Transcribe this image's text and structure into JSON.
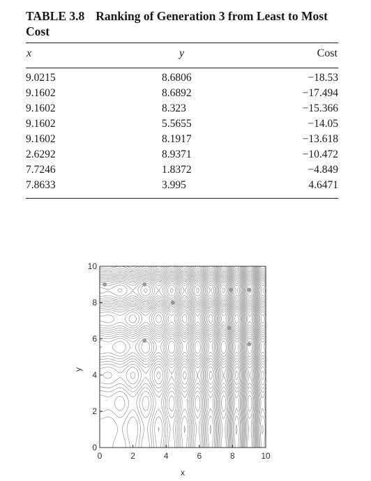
{
  "table": {
    "number": "TABLE 3.8",
    "title": "Ranking of Generation 3 from Least to Most Cost",
    "columns": [
      "x",
      "y",
      "Cost"
    ],
    "rows": [
      [
        "9.0215",
        "8.6806",
        "−18.53"
      ],
      [
        "9.1602",
        "8.6892",
        "−17.494"
      ],
      [
        "9.1602",
        "8.323",
        "−15.366"
      ],
      [
        "9.1602",
        "5.5655",
        "−14.05"
      ],
      [
        "9.1602",
        "8.1917",
        "−13.618"
      ],
      [
        "2.6292",
        "8.9371",
        "−10.472"
      ],
      [
        "7.7246",
        "1.8372",
        "−4.849"
      ],
      [
        "7.8633",
        "3.995",
        "4.6471"
      ]
    ]
  },
  "chart_data": {
    "type": "scatter",
    "title": "",
    "xlabel": "x",
    "ylabel": "y",
    "xlim": [
      0,
      10
    ],
    "ylim": [
      0,
      10
    ],
    "x_ticks": [
      "0",
      "2",
      "4",
      "6",
      "8",
      "10"
    ],
    "y_ticks": [
      "0",
      "2",
      "4",
      "6",
      "8",
      "10"
    ],
    "grid": false,
    "background": "contour lines",
    "points": [
      {
        "x": 0.3,
        "y": 9.0
      },
      {
        "x": 2.7,
        "y": 9.0
      },
      {
        "x": 4.4,
        "y": 8.0
      },
      {
        "x": 7.9,
        "y": 8.7
      },
      {
        "x": 9.0,
        "y": 8.7
      },
      {
        "x": 7.8,
        "y": 6.6
      },
      {
        "x": 2.7,
        "y": 5.9
      },
      {
        "x": 9.0,
        "y": 5.7
      }
    ],
    "colors": {
      "contour": "#9a9a9a",
      "points": "#999999",
      "axis": "#333333"
    }
  }
}
